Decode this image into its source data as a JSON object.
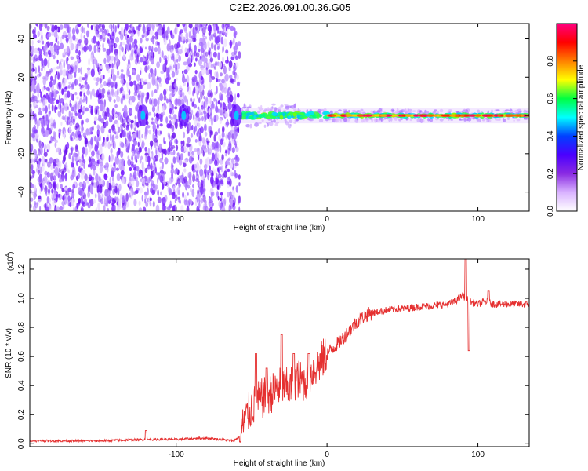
{
  "title": "C2E2.2026.091.00.36.G05",
  "chart_data": [
    {
      "type": "heatmap",
      "xlabel": "Height of straight line (km)",
      "ylabel": "Frequency (Hz)",
      "xlim": [
        -197,
        134
      ],
      "ylim": [
        -50,
        48
      ],
      "xticks": [
        -100,
        0,
        100
      ],
      "yticks": [
        40,
        20,
        0,
        -20,
        -40
      ],
      "noise_region_x": [
        -197,
        -58
      ],
      "signal_band_hz": [
        -2,
        2
      ],
      "strong_band_start_x": 0,
      "colorbar": {
        "label": "Normalized spectral amplitude",
        "range": [
          0,
          1
        ],
        "ticks": [
          "0.0",
          "0.2",
          "0.4",
          "0.6",
          "0.8"
        ],
        "tick_values": [
          0,
          0.2,
          0.4,
          0.6,
          0.8
        ],
        "colors": [
          "#ffffff",
          "#d9b3ff",
          "#8a2be2",
          "#4b00ff",
          "#0040ff",
          "#00ffff",
          "#00ff40",
          "#ffff00",
          "#ff8000",
          "#ff0000",
          "#ff0080"
        ]
      }
    },
    {
      "type": "line",
      "xlabel": "Height of straight line (km)",
      "ylabel": "SNR (10 * v/v)",
      "multiplier": "(x10",
      "multiplier_exp": "4",
      "multiplier_close": ")",
      "xlim": [
        -197,
        134
      ],
      "ylim": [
        -0.02,
        1.27
      ],
      "xticks": [
        -100,
        0,
        100
      ],
      "yticks": [
        "0.0",
        "0.2",
        "0.4",
        "0.6",
        "0.8",
        "1.0",
        "1.2"
      ],
      "ytick_values": [
        0,
        0.2,
        0.4,
        0.6,
        0.8,
        1.0,
        1.2
      ],
      "series_color": "#e53030",
      "series": [
        {
          "x": [
            -197,
            -150,
            -120,
            -100,
            -80,
            -62,
            -58,
            -55,
            -50,
            -45,
            -40,
            -35,
            -30,
            -25,
            -20,
            -15,
            -10,
            -5,
            0,
            5,
            10,
            15,
            20,
            25,
            30,
            40,
            50,
            60,
            70,
            80,
            85,
            90,
            92,
            94,
            96,
            100,
            105,
            110,
            120,
            134
          ],
          "y": [
            0.02,
            0.02,
            0.03,
            0.03,
            0.04,
            0.02,
            0.05,
            0.15,
            0.25,
            0.3,
            0.33,
            0.36,
            0.4,
            0.38,
            0.45,
            0.42,
            0.5,
            0.55,
            0.62,
            0.67,
            0.72,
            0.78,
            0.84,
            0.88,
            0.9,
            0.92,
            0.93,
            0.94,
            0.95,
            0.96,
            0.98,
            1.02,
            1.0,
            0.99,
            0.97,
            0.96,
            0.98,
            0.96,
            0.96,
            0.96
          ],
          "spikes": [
            {
              "x": -120,
              "y": 0.09
            },
            {
              "x": -47,
              "y": 0.62
            },
            {
              "x": -40,
              "y": 0.52
            },
            {
              "x": -30,
              "y": 0.75
            },
            {
              "x": -22,
              "y": 0.62
            },
            {
              "x": -12,
              "y": 0.62
            },
            {
              "x": 92,
              "y": 1.27
            },
            {
              "x": 94,
              "y": 0.64
            },
            {
              "x": 107,
              "y": 1.05
            }
          ]
        }
      ]
    }
  ]
}
